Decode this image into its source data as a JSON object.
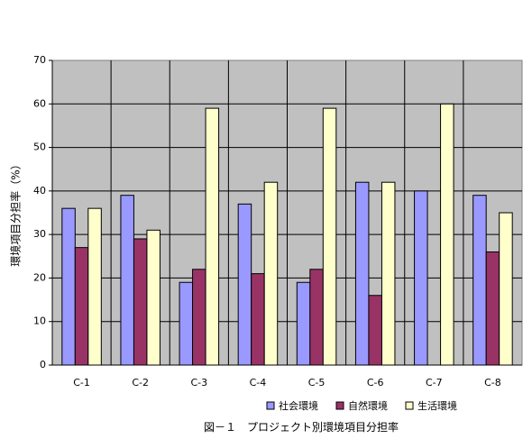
{
  "chart_data": {
    "type": "bar",
    "title": "図－１　プロジェクト別環境項目分担率",
    "xlabel": "",
    "ylabel": "環境項目分担率（%）",
    "ylim": [
      0,
      70
    ],
    "yticks": [
      0,
      10,
      20,
      30,
      40,
      50,
      60,
      70
    ],
    "grid": true,
    "legend_position": "bottom-right",
    "plot_background": "#c0c0c0",
    "categories": [
      "C-1",
      "C-2",
      "C-3",
      "C-4",
      "C-5",
      "C-6",
      "C-7",
      "C-8"
    ],
    "series": [
      {
        "name": "社会環境",
        "color": "#9999ff",
        "values": [
          36,
          39,
          19,
          37,
          19,
          42,
          40,
          39
        ]
      },
      {
        "name": "自然環境",
        "color": "#993366",
        "values": [
          27,
          29,
          22,
          21,
          22,
          16,
          0,
          26
        ]
      },
      {
        "name": "生活環境",
        "color": "#ffffcc",
        "values": [
          36,
          31,
          59,
          42,
          59,
          42,
          60,
          35
        ]
      }
    ]
  }
}
